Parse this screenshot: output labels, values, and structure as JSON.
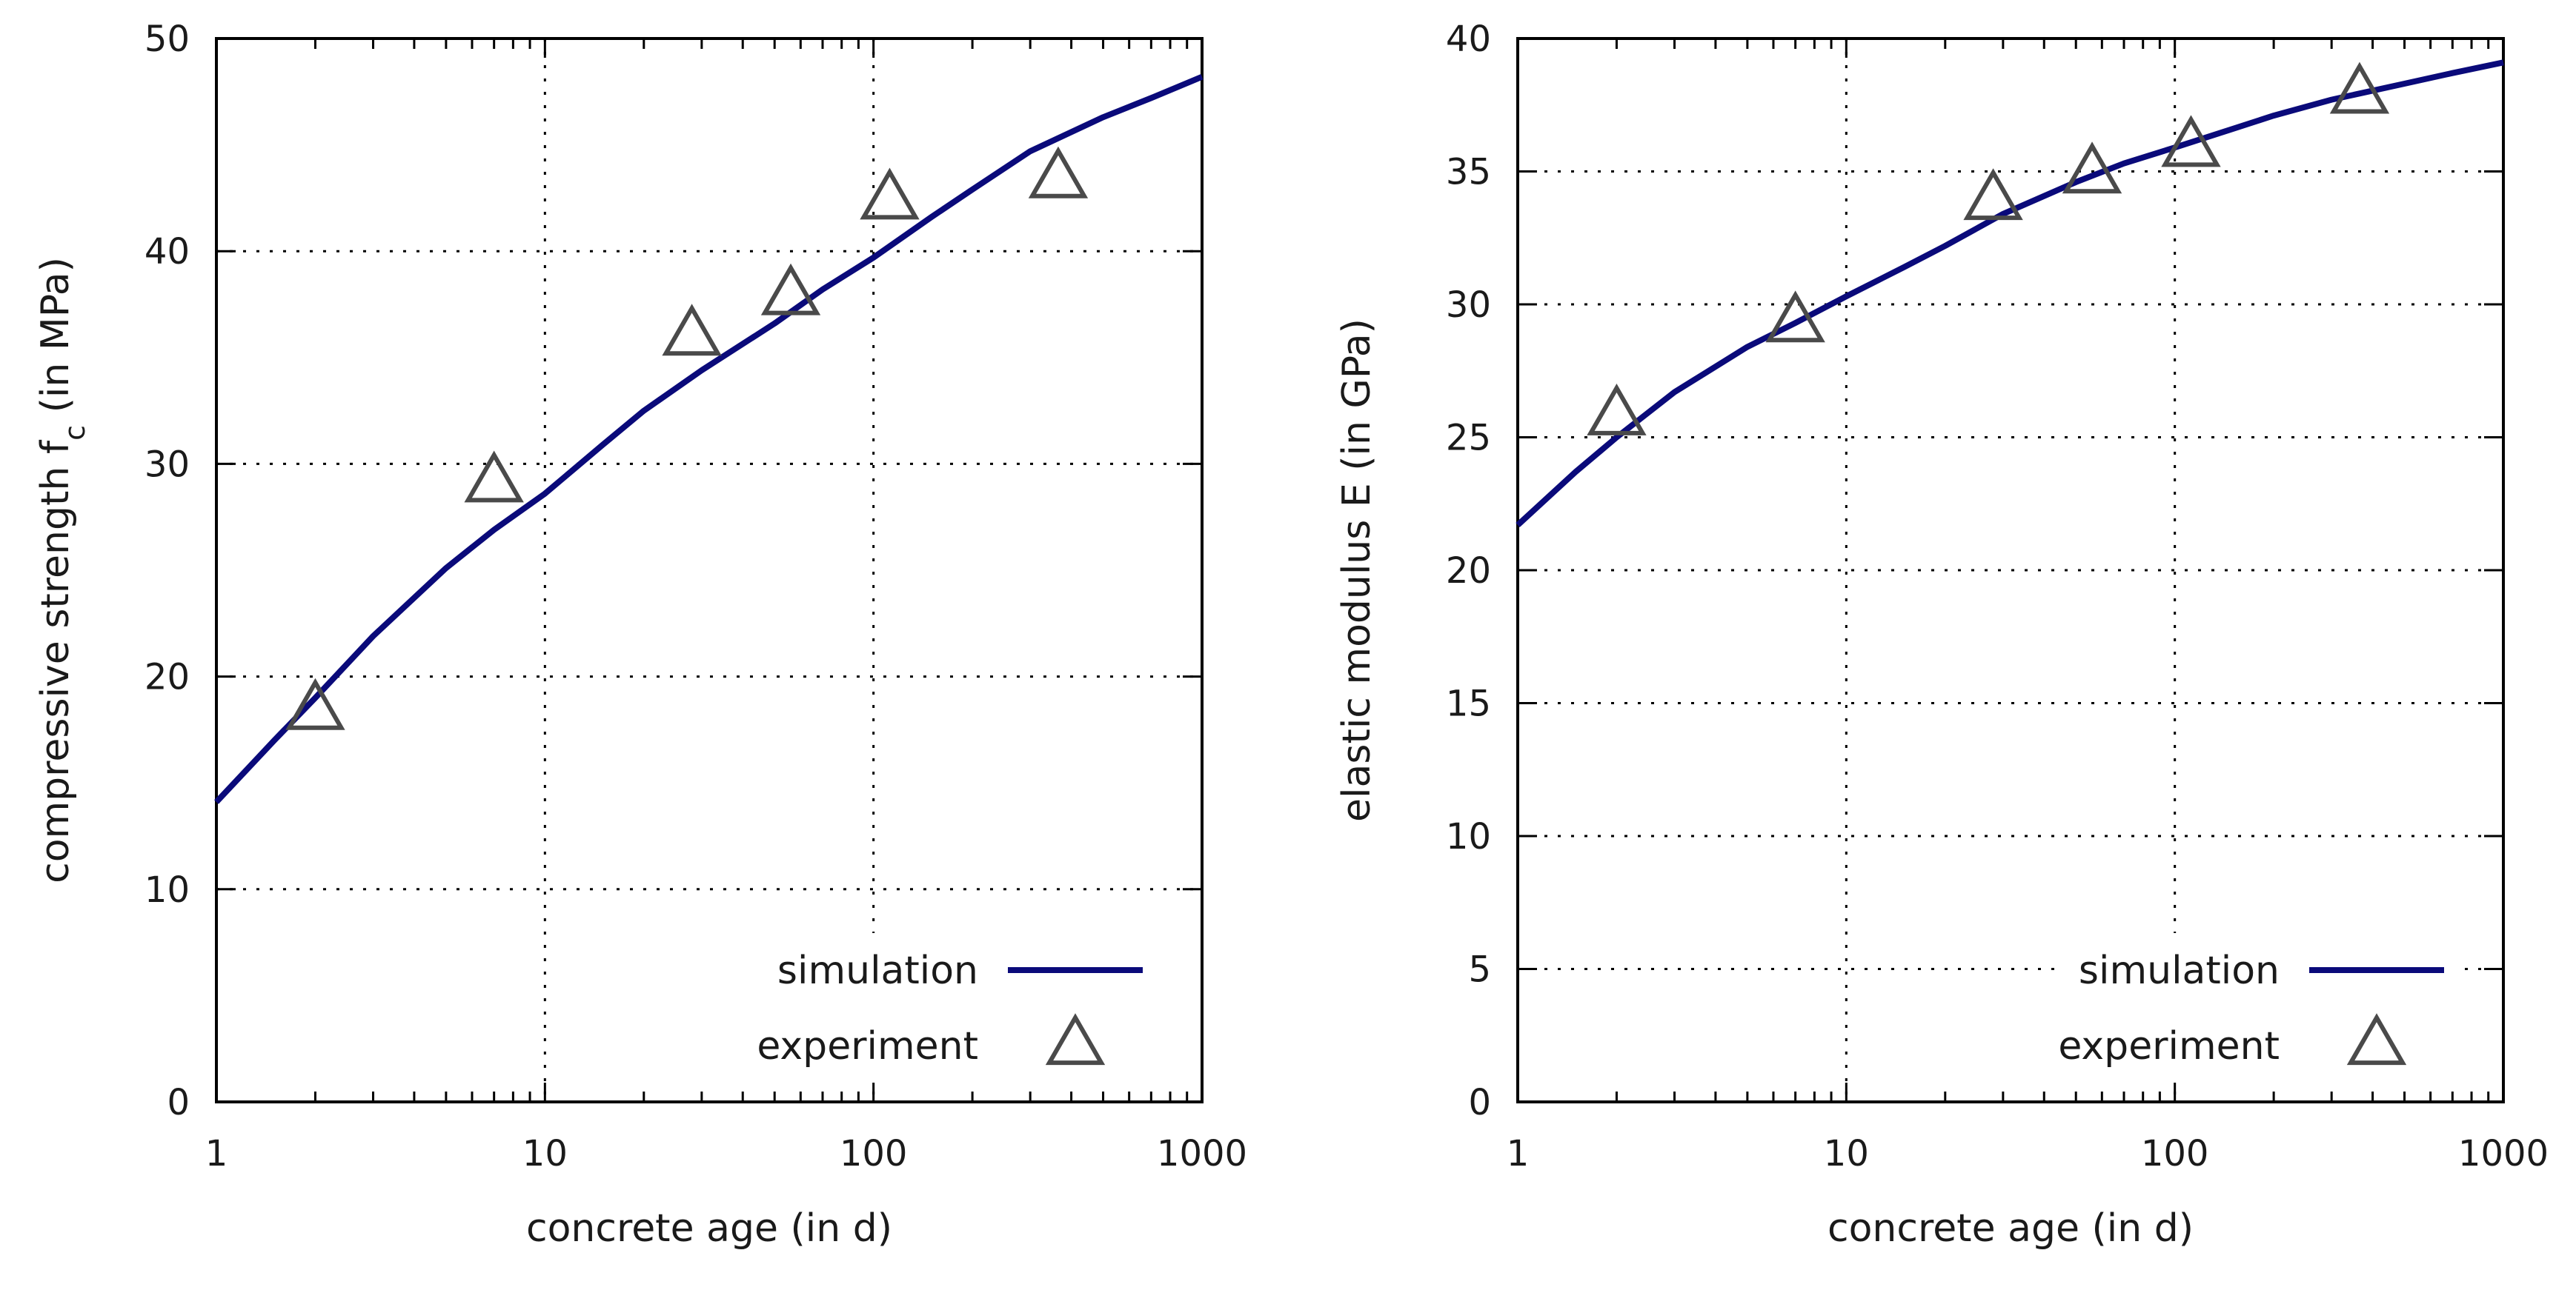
{
  "chart_data": [
    {
      "type": "line",
      "xscale": "log",
      "xlabel": "concrete age (in d)",
      "ylabel": "compressive strength f",
      "ylabel_sub": "c",
      "ylabel_tail": " (in MPa)",
      "xlim": [
        1,
        1000
      ],
      "ylim": [
        0,
        50
      ],
      "xticks": [
        1,
        10,
        100,
        1000
      ],
      "xtick_labels": [
        "1",
        "10",
        "100",
        "1000"
      ],
      "yticks": [
        0,
        10,
        20,
        30,
        40,
        50
      ],
      "ytick_labels": [
        "0",
        "10",
        "20",
        "30",
        "40",
        "50"
      ],
      "grid": true,
      "legend": "bottom-right",
      "series": [
        {
          "name": "simulation",
          "kind": "line",
          "color": "#0a0a7a",
          "x": [
            1,
            1.5,
            2,
            3,
            5,
            7,
            10,
            15,
            20,
            30,
            50,
            70,
            100,
            150,
            200,
            300,
            500,
            700,
            1000
          ],
          "y": [
            14.1,
            17.0,
            19.0,
            21.9,
            25.1,
            26.9,
            28.6,
            30.9,
            32.5,
            34.4,
            36.6,
            38.2,
            39.7,
            41.6,
            42.9,
            44.7,
            46.3,
            47.2,
            48.2
          ]
        },
        {
          "name": "experiment",
          "kind": "scatter",
          "marker": "triangle",
          "color": "#4a4a4a",
          "x": [
            2,
            7,
            28,
            56,
            112,
            365
          ],
          "y": [
            18.4,
            29.1,
            36.0,
            37.9,
            42.4,
            43.4
          ]
        }
      ]
    },
    {
      "type": "line",
      "xscale": "log",
      "xlabel": "concrete age (in d)",
      "ylabel": "elastic modulus E (in GPa)",
      "ylabel_sub": "",
      "ylabel_tail": "",
      "xlim": [
        1,
        1000
      ],
      "ylim": [
        0,
        40
      ],
      "xticks": [
        1,
        10,
        100,
        1000
      ],
      "xtick_labels": [
        "1",
        "10",
        "100",
        "1000"
      ],
      "yticks": [
        0,
        5,
        10,
        15,
        20,
        25,
        30,
        35,
        40
      ],
      "ytick_labels": [
        "0",
        "5",
        "10",
        "15",
        "20",
        "25",
        "30",
        "35",
        "40"
      ],
      "grid": true,
      "legend": "bottom-right",
      "series": [
        {
          "name": "simulation",
          "kind": "line",
          "color": "#0a0a7a",
          "x": [
            1,
            1.5,
            2,
            3,
            5,
            7,
            10,
            15,
            20,
            30,
            50,
            70,
            100,
            150,
            200,
            300,
            500,
            700,
            1000
          ],
          "y": [
            21.7,
            23.7,
            25.0,
            26.7,
            28.4,
            29.3,
            30.3,
            31.4,
            32.2,
            33.4,
            34.6,
            35.3,
            35.9,
            36.6,
            37.1,
            37.7,
            38.3,
            38.7,
            39.1
          ]
        },
        {
          "name": "experiment",
          "kind": "scatter",
          "marker": "triangle",
          "color": "#4a4a4a",
          "x": [
            2,
            7,
            28,
            56,
            112,
            365
          ],
          "y": [
            25.8,
            29.3,
            33.9,
            34.9,
            35.9,
            37.9
          ]
        }
      ]
    }
  ]
}
